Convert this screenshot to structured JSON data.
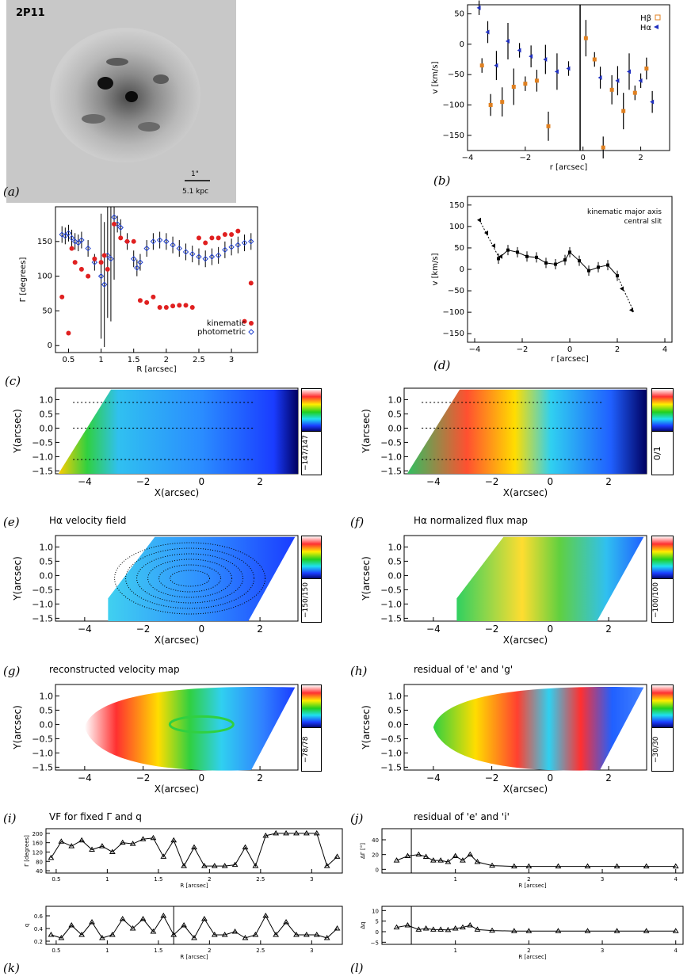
{
  "labels": {
    "a": "(a)",
    "b": "(b)",
    "c": "(c)",
    "d": "(d)",
    "e": "(e)",
    "f": "(f)",
    "g": "(g)",
    "h": "(h)",
    "i": "(i)",
    "j": "(j)",
    "k": "(k)",
    "l": "(l)"
  },
  "image_a": {
    "id": "2P11",
    "scale_top": "1\"",
    "scale_bottom": "5.1 kpc"
  },
  "titles": {
    "e": "Hα velocity field",
    "f": "Hα normalized flux map",
    "g": "reconstructed velocity map",
    "h": "residual of 'e' and 'g'",
    "i": "VF for fixed Γ and q",
    "j": "residual of 'e' and 'i'"
  },
  "colorbars": {
    "c": "−147/147",
    "f_top": "0/1",
    "e": "−150/150",
    "f": "−100/100",
    "g": "−78/78",
    "h": "−30/30"
  },
  "chart_data": [
    {
      "panel": "b",
      "type": "scatter",
      "xlabel": "r [arcsec]",
      "ylabel": "v [km/s]",
      "xlim": [
        -4,
        3
      ],
      "ylim": [
        -175,
        65
      ],
      "xticks": [
        -4,
        -2,
        0,
        2
      ],
      "yticks": [
        -150,
        -100,
        -50,
        0,
        50
      ],
      "legend": [
        {
          "name": "Hβ",
          "color": "#e08020"
        },
        {
          "name": "Hα",
          "color": "#2030c0"
        }
      ],
      "series": [
        {
          "name": "Hβ",
          "x": [
            -3.5,
            -3.2,
            -2.8,
            -2.4,
            -2.0,
            -1.6,
            -1.2,
            0.1,
            0.4,
            0.7,
            1.0,
            1.4,
            1.8,
            2.2
          ],
          "y": [
            -35,
            -100,
            -95,
            -70,
            -65,
            -60,
            -135,
            10,
            -25,
            -170,
            -75,
            -110,
            -80,
            -40
          ]
        },
        {
          "name": "Hα",
          "x": [
            -3.6,
            -3.3,
            -3.0,
            -2.6,
            -2.2,
            -1.8,
            -1.3,
            -0.9,
            -0.5,
            0.6,
            1.2,
            1.6,
            2.0,
            2.4
          ],
          "y": [
            60,
            20,
            -35,
            5,
            -10,
            -20,
            -25,
            -45,
            -40,
            -55,
            -60,
            -45,
            -60,
            -95
          ]
        }
      ]
    },
    {
      "panel": "c",
      "type": "scatter",
      "xlabel": "R [arcsec]",
      "ylabel": "Γ [degrees]",
      "xlim": [
        0.3,
        3.4
      ],
      "ylim": [
        -10,
        200
      ],
      "xticks": [
        0.5,
        1.0,
        1.5,
        2.0,
        2.5,
        3.0
      ],
      "yticks": [
        0,
        50,
        100,
        150
      ],
      "legend": [
        {
          "name": "kinematic",
          "color": "#e02020"
        },
        {
          "name": "photometric",
          "color": "#2040d0"
        }
      ],
      "series": [
        {
          "name": "kinematic",
          "x": [
            0.4,
            0.5,
            0.55,
            0.6,
            0.7,
            0.8,
            0.9,
            1.0,
            1.05,
            1.1,
            1.2,
            1.3,
            1.4,
            1.5,
            1.6,
            1.7,
            1.8,
            1.9,
            2.0,
            2.1,
            2.2,
            2.3,
            2.4,
            2.5,
            2.6,
            2.7,
            2.8,
            2.9,
            3.0,
            3.1,
            3.2,
            3.3
          ],
          "y": [
            70,
            18,
            140,
            120,
            110,
            100,
            125,
            120,
            130,
            110,
            175,
            155,
            150,
            150,
            65,
            62,
            70,
            55,
            55,
            57,
            58,
            58,
            55,
            155,
            148,
            155,
            155,
            160,
            160,
            165,
            35,
            90
          ]
        },
        {
          "name": "photometric",
          "x": [
            0.4,
            0.45,
            0.5,
            0.55,
            0.6,
            0.65,
            0.7,
            0.8,
            0.9,
            1.0,
            1.05,
            1.1,
            1.15,
            1.2,
            1.25,
            1.3,
            1.4,
            1.5,
            1.55,
            1.6,
            1.7,
            1.8,
            1.9,
            2.0,
            2.1,
            2.2,
            2.3,
            2.4,
            2.5,
            2.6,
            2.7,
            2.8,
            2.9,
            3.0,
            3.1,
            3.2,
            3.3
          ],
          "y": [
            160,
            158,
            162,
            155,
            150,
            148,
            152,
            140,
            120,
            100,
            88,
            130,
            125,
            185,
            175,
            170,
            150,
            125,
            112,
            120,
            140,
            150,
            152,
            150,
            145,
            140,
            135,
            132,
            128,
            125,
            128,
            130,
            138,
            142,
            145,
            148,
            150
          ]
        }
      ]
    },
    {
      "panel": "d",
      "type": "line",
      "xlabel": "r [arcsec]",
      "ylabel": "v [km/s]",
      "xlim": [
        -4.3,
        4.3
      ],
      "ylim": [
        -170,
        170
      ],
      "xticks": [
        -4,
        -2,
        0,
        2,
        4
      ],
      "yticks": [
        -150,
        -100,
        -50,
        0,
        50,
        100,
        150
      ],
      "legend": [
        {
          "name": "kinematic major axis"
        },
        {
          "name": "central slit"
        }
      ],
      "series": [
        {
          "name": "kinematic major axis",
          "x": [
            -3.0,
            -2.6,
            -2.2,
            -1.8,
            -1.4,
            -1.0,
            -0.6,
            -0.2,
            0.0,
            0.4,
            0.8,
            1.2,
            1.6,
            2.0
          ],
          "y": [
            25,
            45,
            40,
            30,
            28,
            15,
            12,
            22,
            40,
            20,
            -3,
            5,
            10,
            -15
          ]
        },
        {
          "name": "central slit",
          "x": [
            -3.8,
            -3.5,
            -3.2,
            -2.9,
            2.2,
            2.6
          ],
          "y": [
            115,
            85,
            55,
            30,
            -45,
            -95
          ]
        }
      ]
    },
    {
      "panel": "k1",
      "type": "line",
      "xlabel": "R [arcsec]",
      "ylabel": "Γ [degrees]",
      "xlim": [
        0.4,
        3.3
      ],
      "ylim": [
        30,
        220
      ],
      "xticks": [
        0.5,
        1.0,
        1.5,
        2.0,
        2.5,
        3.0
      ],
      "yticks": [
        40,
        80,
        120,
        160,
        200
      ],
      "series": [
        {
          "name": "Γ",
          "x": [
            0.45,
            0.55,
            0.65,
            0.75,
            0.85,
            0.95,
            1.05,
            1.15,
            1.25,
            1.35,
            1.45,
            1.55,
            1.65,
            1.75,
            1.85,
            1.95,
            2.05,
            2.15,
            2.25,
            2.35,
            2.45,
            2.55,
            2.65,
            2.75,
            2.85,
            2.95,
            3.05,
            3.15,
            3.25
          ],
          "y": [
            95,
            165,
            145,
            170,
            130,
            145,
            120,
            160,
            155,
            175,
            180,
            100,
            170,
            60,
            140,
            60,
            60,
            60,
            65,
            140,
            60,
            190,
            200,
            200,
            200,
            200,
            200,
            60,
            100
          ]
        }
      ]
    },
    {
      "panel": "k2",
      "type": "line",
      "xlabel": "R [arcsec]",
      "ylabel": "q",
      "xlim": [
        0.4,
        3.3
      ],
      "ylim": [
        0.15,
        0.75
      ],
      "xticks": [
        0.5,
        1.0,
        1.5,
        2.0,
        2.5,
        3.0
      ],
      "yticks": [
        0.2,
        0.4,
        0.6
      ],
      "series": [
        {
          "name": "q",
          "x": [
            0.45,
            0.55,
            0.65,
            0.75,
            0.85,
            0.95,
            1.05,
            1.15,
            1.25,
            1.35,
            1.45,
            1.55,
            1.65,
            1.75,
            1.85,
            1.95,
            2.05,
            2.15,
            2.25,
            2.35,
            2.45,
            2.55,
            2.65,
            2.75,
            2.85,
            2.95,
            3.05,
            3.15,
            3.25
          ],
          "y": [
            0.3,
            0.25,
            0.45,
            0.3,
            0.5,
            0.25,
            0.3,
            0.55,
            0.4,
            0.55,
            0.35,
            0.6,
            0.3,
            0.45,
            0.25,
            0.55,
            0.3,
            0.3,
            0.35,
            0.25,
            0.3,
            0.6,
            0.3,
            0.5,
            0.3,
            0.3,
            0.3,
            0.25,
            0.4
          ]
        }
      ]
    },
    {
      "panel": "l1",
      "type": "line",
      "xlabel": "R [arcsec]",
      "ylabel": "ΔΓ [°]",
      "xlim": [
        0,
        4.1
      ],
      "ylim": [
        -5,
        55
      ],
      "xticks": [
        1,
        2,
        3,
        4
      ],
      "yticks": [
        0,
        20,
        40
      ],
      "series": [
        {
          "name": "ΔΓ",
          "x": [
            0.2,
            0.35,
            0.5,
            0.6,
            0.7,
            0.8,
            0.9,
            1.0,
            1.1,
            1.2,
            1.3,
            1.5,
            1.8,
            2.0,
            2.4,
            2.8,
            3.2,
            3.6,
            4.0
          ],
          "y": [
            12,
            18,
            20,
            17,
            12,
            12,
            10,
            18,
            12,
            20,
            10,
            5,
            4,
            4,
            4,
            4,
            4,
            4,
            4
          ]
        }
      ]
    },
    {
      "panel": "l2",
      "type": "line",
      "xlabel": "R [arcsec]",
      "ylabel": "Δq",
      "xlim": [
        0,
        4.1
      ],
      "ylim": [
        -6,
        12
      ],
      "xticks": [
        1,
        2,
        3,
        4
      ],
      "yticks": [
        -5,
        0,
        5,
        10
      ],
      "series": [
        {
          "name": "Δq",
          "x": [
            0.2,
            0.35,
            0.5,
            0.6,
            0.7,
            0.8,
            0.9,
            1.0,
            1.1,
            1.2,
            1.3,
            1.5,
            1.8,
            2.0,
            2.4,
            2.8,
            3.2,
            3.6,
            4.0
          ],
          "y": [
            2,
            3,
            1,
            1.5,
            1,
            1,
            0.8,
            1.5,
            2,
            3,
            1,
            0.5,
            0.3,
            0.3,
            0.3,
            0.3,
            0.3,
            0.3,
            0.3
          ]
        }
      ]
    },
    {
      "panel": "maps",
      "type": "heatmap",
      "xlabel": "X(arcsec)",
      "ylabel": "Y(arcsec)",
      "xlim": [
        -5,
        3.3
      ],
      "ylim": [
        -1.6,
        1.4
      ],
      "xticks": [
        -4,
        -2,
        0,
        2
      ],
      "yticks": [
        -1.5,
        -1.0,
        -0.5,
        0.0,
        0.5,
        1.0
      ]
    }
  ]
}
